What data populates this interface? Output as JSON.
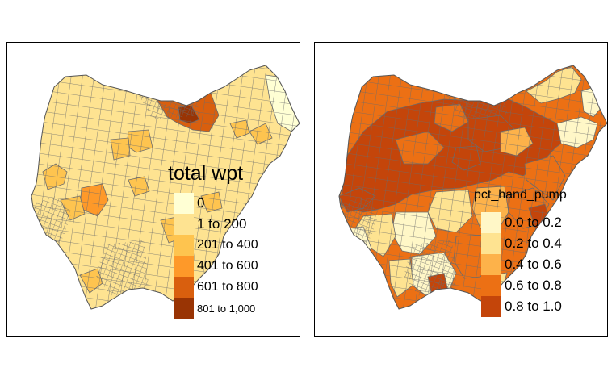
{
  "maps": [
    {
      "variable": "total wpt",
      "legend": {
        "title": "total wpt",
        "items": [
          {
            "label": "0",
            "color": "#ffffd4"
          },
          {
            "label": "1 to 200",
            "color": "#fee391"
          },
          {
            "label": "201 to 400",
            "color": "#fec44f"
          },
          {
            "label": "401 to 600",
            "color": "#fe9929"
          },
          {
            "label": "601 to 800",
            "color": "#d95f0e"
          },
          {
            "label": "801 to 1,000",
            "color": "#993404"
          }
        ]
      }
    },
    {
      "variable": "pct_hand_pump",
      "legend": {
        "title": "pct_hand_pump",
        "items": [
          {
            "label": "0.0 to 0.2",
            "color": "#fff7c7"
          },
          {
            "label": "0.2 to 0.4",
            "color": "#fee391"
          },
          {
            "label": "0.4 to 0.6",
            "color": "#fdb24a"
          },
          {
            "label": "0.6 to 0.8",
            "color": "#ec7014"
          },
          {
            "label": "0.8 to 1.0",
            "color": "#c4450a"
          }
        ]
      }
    }
  ],
  "border_color": "#666666"
}
